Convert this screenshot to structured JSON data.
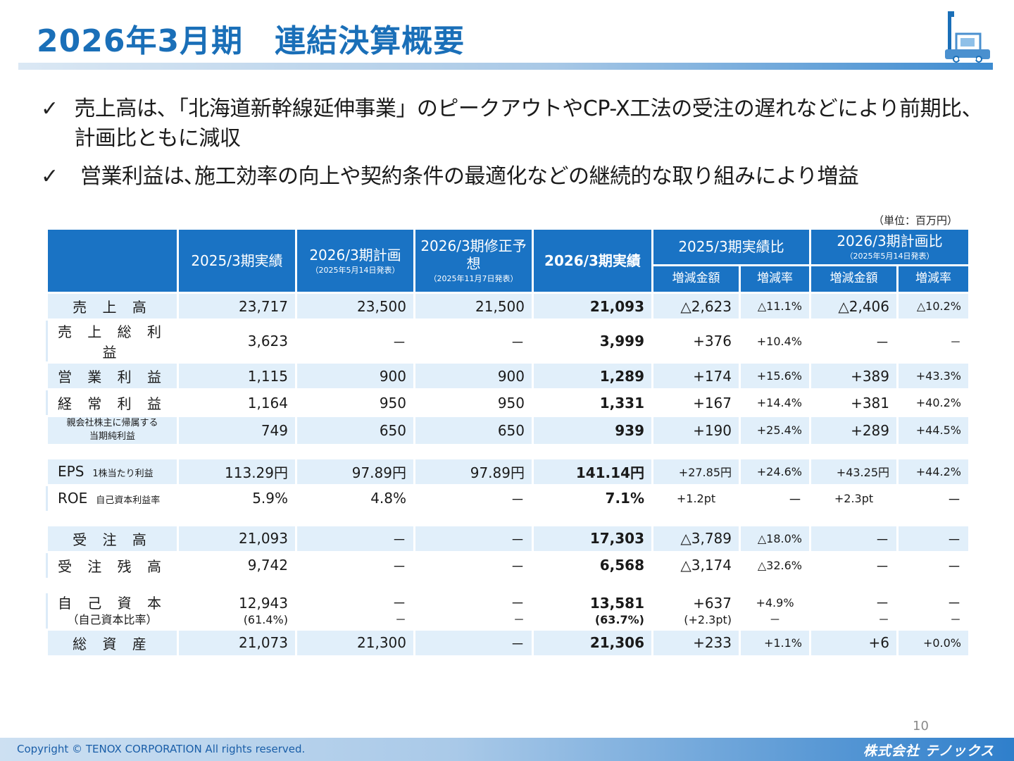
{
  "header": {
    "title": "2026年3月期　連結決算概要",
    "logo_icon": "forklift-building-icon"
  },
  "bullets": [
    "売上高は､「北海道新幹線延伸事業」のピークアウトやCP-X工法の受注の遅れなどにより前期比、計画比ともに減収",
    "営業利益は､施工効率の向上や契約条件の最適化などの継続的な取り組みにより増益"
  ],
  "check_mark": "✓",
  "unit_note": "（単位：百万円）",
  "table": {
    "headers": {
      "prev_actual": "2025/3期実績",
      "plan": "2026/3期計画",
      "plan_note": "（2025年5月14日発表）",
      "revised": "2026/3期修正予想",
      "revised_note": "（2025年11月7日発表）",
      "actual": "2026/3期実績",
      "vs_prev": "2025/3期実績比",
      "vs_plan": "2026/3期計画比",
      "vs_plan_note": "（2025年5月14日発表）",
      "diff_amount": "増減金額",
      "diff_rate": "増減率"
    },
    "rows": [
      {
        "label": "売 上 高",
        "prev": "23,717",
        "plan": "23,500",
        "revised": "21,500",
        "actual": "21,093",
        "d1": "△2,623",
        "r1": "△11.1%",
        "d2": "△2,406",
        "r2": "△10.2%"
      },
      {
        "label": "売 上 総 利 益",
        "prev": "3,623",
        "plan": "－",
        "revised": "－",
        "actual": "3,999",
        "d1": "+376",
        "r1": "+10.4%",
        "d2": "－",
        "r2": "－"
      },
      {
        "label": "営 業 利 益",
        "prev": "1,115",
        "plan": "900",
        "revised": "900",
        "actual": "1,289",
        "d1": "+174",
        "r1": "+15.6%",
        "d2": "+389",
        "r2": "+43.3%"
      },
      {
        "label": "経 常 利 益",
        "prev": "1,164",
        "plan": "950",
        "revised": "950",
        "actual": "1,331",
        "d1": "+167",
        "r1": "+14.4%",
        "d2": "+381",
        "r2": "+40.2%"
      },
      {
        "label_line1": "親会社株主に帰属する",
        "label_line2": "当期純利益",
        "prev": "749",
        "plan": "650",
        "revised": "650",
        "actual": "939",
        "d1": "+190",
        "r1": "+25.4%",
        "d2": "+289",
        "r2": "+44.5%"
      },
      {
        "label": "EPS",
        "label_sub": "1株当たり利益",
        "prev": "113.29円",
        "plan": "97.89円",
        "revised": "97.89円",
        "actual": "141.14円",
        "d1": "+27.85円",
        "r1": "+24.6%",
        "d2": "+43.25円",
        "r2": "+44.2%"
      },
      {
        "label": "ROE",
        "label_sub": "自己資本利益率",
        "prev": "5.9%",
        "plan": "4.8%",
        "revised": "－",
        "actual": "7.1%",
        "d1": "+1.2pt",
        "r1": "－",
        "d2": "+2.3pt",
        "r2": "－"
      },
      {
        "label": "受 注 高",
        "prev": "21,093",
        "plan": "－",
        "revised": "－",
        "actual": "17,303",
        "d1": "△3,789",
        "r1": "△18.0%",
        "d2": "－",
        "r2": "－"
      },
      {
        "label": "受 注 残 高",
        "prev": "9,742",
        "plan": "－",
        "revised": "－",
        "actual": "6,568",
        "d1": "△3,174",
        "r1": "△32.6%",
        "d2": "－",
        "r2": "－"
      },
      {
        "label": "自 己 資 本",
        "label_sub": "（自己資本比率）",
        "prev": "12,943",
        "prev_sub": "(61.4%)",
        "plan": "－",
        "plan_sub": "－",
        "revised": "－",
        "revised_sub": "－",
        "actual": "13,581",
        "actual_sub": "(63.7%)",
        "d1": "+637",
        "d1_sub": "(+2.3pt)",
        "r1": "+4.9%",
        "r1_sub": "－",
        "d2": "－",
        "d2_sub": "－",
        "r2": "－",
        "r2_sub": "－"
      },
      {
        "label": "総 資 産",
        "prev": "21,073",
        "plan": "21,300",
        "revised": "－",
        "actual": "21,306",
        "d1": "+233",
        "r1": "+1.1%",
        "d2": "+6",
        "r2": "+0.0%"
      }
    ]
  },
  "page_number": "10",
  "footer": {
    "copyright": "Copyright © TENOX CORPORATION All rights reserved.",
    "company": "株式会社 テノックス"
  },
  "colors": {
    "accent": "#1a6fb8",
    "header_bg": "#1a73c4",
    "row_light": "#e1effa"
  }
}
